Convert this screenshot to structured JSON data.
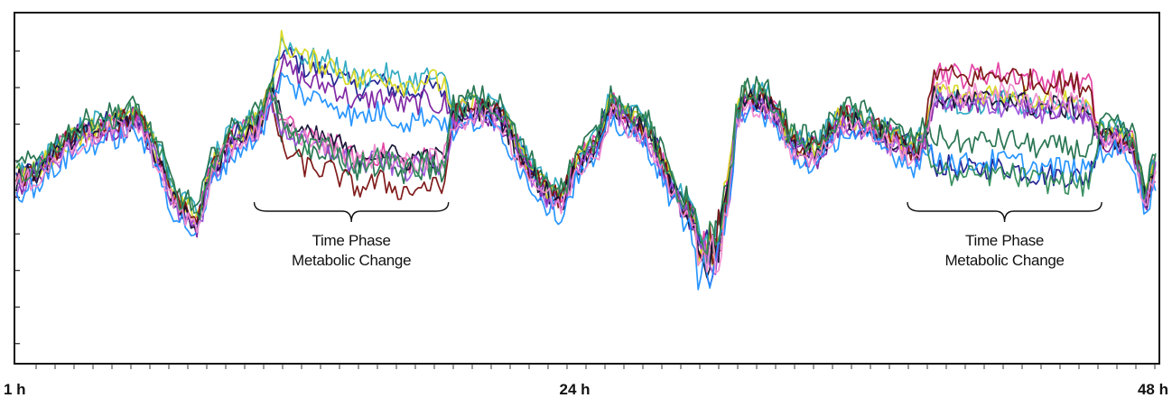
{
  "chart_data": {
    "type": "line",
    "title": "",
    "xlabel": "",
    "ylabel": "",
    "x_ticks": [
      {
        "x": 1,
        "label": "1 h"
      },
      {
        "x": 24,
        "label": "24 h"
      },
      {
        "x": 48,
        "label": "48 h"
      }
    ],
    "xlim": [
      1,
      48
    ],
    "ylim": [
      0,
      10
    ],
    "grid": false,
    "legend": "none",
    "annotations": [
      {
        "id": "phase1",
        "lines": [
          "Time Phase",
          "Metabolic Change"
        ],
        "x_from": 10.8,
        "x_to": 18.8
      },
      {
        "id": "phase2",
        "lines": [
          "Time Phase",
          "Metabolic Change"
        ],
        "x_from": 37.7,
        "x_to": 45.7
      }
    ],
    "series_colors": [
      "#1a1a8c",
      "#7a1fa0",
      "#e03ca0",
      "#2aa8c0",
      "#d8d820",
      "#1f6f4a",
      "#7a1010",
      "#101030",
      "#9a50d8",
      "#1e90ff",
      "#f08bd0",
      "#2e8b57"
    ],
    "baseline": [
      [
        1,
        5.2
      ],
      [
        2,
        5.5
      ],
      [
        3,
        6.2
      ],
      [
        4,
        6.6
      ],
      [
        5,
        6.8
      ],
      [
        6,
        7.0
      ],
      [
        7,
        5.6
      ],
      [
        7.5,
        4.6
      ],
      [
        8,
        4.3
      ],
      [
        8.5,
        4.0
      ],
      [
        9,
        5.4
      ],
      [
        9.5,
        6.0
      ],
      [
        10,
        6.4
      ],
      [
        10.5,
        6.6
      ],
      [
        11,
        6.9
      ],
      [
        11.5,
        7.7
      ],
      [
        12,
        7.4
      ],
      [
        13,
        6.9
      ],
      [
        14,
        6.8
      ],
      [
        15,
        6.3
      ],
      [
        16,
        6.5
      ],
      [
        17,
        6.2
      ],
      [
        18,
        6.4
      ],
      [
        18.5,
        6.2
      ],
      [
        19,
        7.0
      ],
      [
        20,
        7.3
      ],
      [
        21,
        7.0
      ],
      [
        22,
        5.6
      ],
      [
        23,
        4.8
      ],
      [
        23.5,
        4.6
      ],
      [
        24,
        5.6
      ],
      [
        25,
        6.3
      ],
      [
        25.5,
        7.4
      ],
      [
        26,
        7.0
      ],
      [
        27,
        6.6
      ],
      [
        28,
        5.0
      ],
      [
        29,
        3.9
      ],
      [
        29.5,
        3.6
      ],
      [
        30,
        4.2
      ],
      [
        30.5,
        6.6
      ],
      [
        31,
        7.6
      ],
      [
        32,
        7.4
      ],
      [
        33,
        6.2
      ],
      [
        34,
        6.0
      ],
      [
        35,
        7.0
      ],
      [
        36,
        6.8
      ],
      [
        37,
        6.4
      ],
      [
        38,
        6.0
      ],
      [
        38.5,
        6.5
      ],
      [
        39,
        6.6
      ],
      [
        40,
        6.4
      ],
      [
        41,
        6.5
      ],
      [
        42,
        6.5
      ],
      [
        43,
        6.3
      ],
      [
        44,
        6.3
      ],
      [
        45,
        6.2
      ],
      [
        46,
        6.5
      ],
      [
        47,
        6.2
      ],
      [
        47.5,
        4.6
      ],
      [
        48,
        5.8
      ]
    ],
    "phase_bumps": [
      {
        "from": 11.5,
        "to": 19.0,
        "amp": 1.8
      },
      {
        "from": 38.4,
        "to": 45.6,
        "amp": 1.7
      }
    ]
  }
}
